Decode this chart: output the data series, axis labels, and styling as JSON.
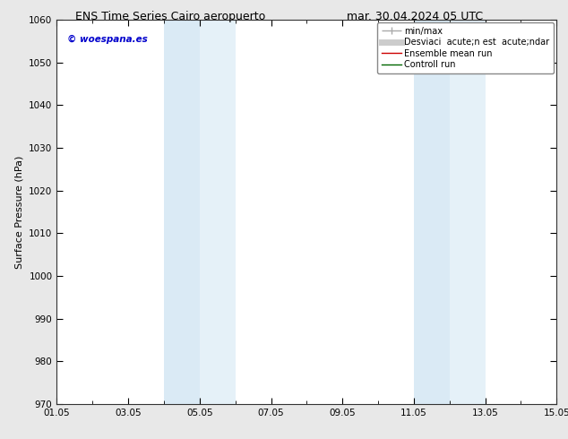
{
  "title_left": "ENS Time Series Cairo aeropuerto",
  "title_right": "mar. 30.04.2024 05 UTC",
  "ylabel": "Surface Pressure (hPa)",
  "ylim": [
    970,
    1060
  ],
  "yticks": [
    970,
    980,
    990,
    1000,
    1010,
    1020,
    1030,
    1040,
    1050,
    1060
  ],
  "x_start_days": 0,
  "x_end_days": 14,
  "xtick_positions_days": [
    0,
    2,
    4,
    6,
    8,
    10,
    12,
    14
  ],
  "xtick_labels": [
    "01.05",
    "03.05",
    "05.05",
    "07.05",
    "09.05",
    "11.05",
    "13.05",
    "15.05"
  ],
  "shaded_bands": [
    {
      "xmin": 3.0,
      "xmax": 4.0,
      "color": "#daeaf5"
    },
    {
      "xmin": 4.0,
      "xmax": 5.0,
      "color": "#e5f1f8"
    },
    {
      "xmin": 10.0,
      "xmax": 11.0,
      "color": "#daeaf5"
    },
    {
      "xmin": 11.0,
      "xmax": 12.0,
      "color": "#e5f1f8"
    }
  ],
  "watermark": "© woespana.es",
  "watermark_color": "#0000cc",
  "legend_labels": [
    "min/max",
    "Desviaci  acute;n est  acute;ndar",
    "Ensemble mean run",
    "Controll run"
  ],
  "legend_colors": [
    "#aaaaaa",
    "#cccccc",
    "#cc0000",
    "#006600"
  ],
  "legend_lws": [
    1.0,
    5,
    1.0,
    1.0
  ],
  "bg_color": "#e8e8e8",
  "plot_bg_color": "#ffffff",
  "title_fontsize": 9,
  "tick_fontsize": 7.5,
  "ylabel_fontsize": 8,
  "legend_fontsize": 7
}
